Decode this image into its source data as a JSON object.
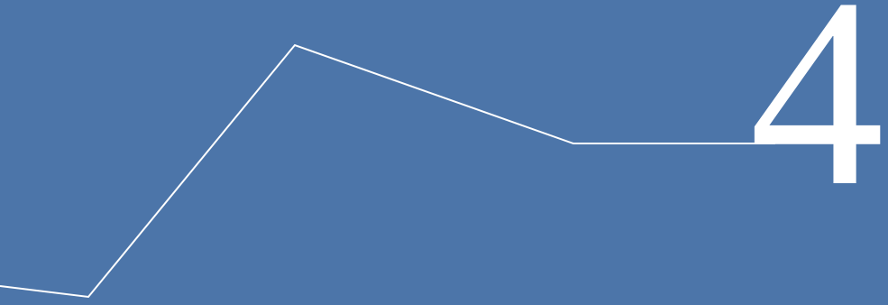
{
  "banner": {
    "number": "4",
    "background_color": "#4c75a9",
    "line_color": "#ffffff"
  }
}
